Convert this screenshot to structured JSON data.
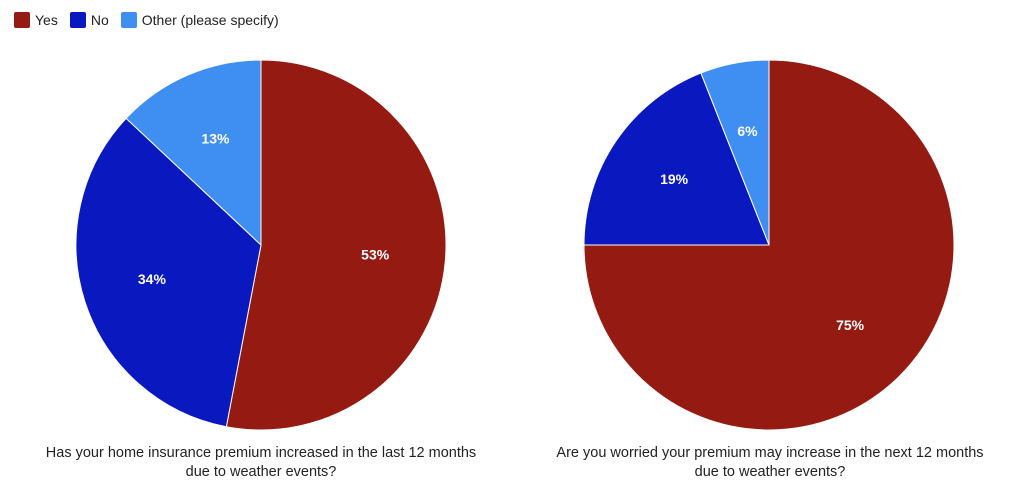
{
  "legend": [
    {
      "label": "Yes",
      "color": "#951b12"
    },
    {
      "label": "No",
      "color": "#0a18c0"
    },
    {
      "label": "Other (please specify)",
      "color": "#3f8ef2"
    }
  ],
  "chart_data": [
    {
      "type": "pie",
      "title_lines": [
        "Has your home insurance premium increased in the last 12 months",
        "due to weather events?"
      ],
      "slices": [
        {
          "label": "Yes",
          "value": 53,
          "display": "53%",
          "color": "#951b12"
        },
        {
          "label": "No",
          "value": 34,
          "display": "34%",
          "color": "#0a18c0"
        },
        {
          "label": "Other (please specify)",
          "value": 13,
          "display": "13%",
          "color": "#3f8ef2"
        }
      ]
    },
    {
      "type": "pie",
      "title_lines": [
        "Are you worried your premium may increase in the next 12 months",
        "due to weather events?"
      ],
      "slices": [
        {
          "label": "Yes",
          "value": 75,
          "display": "75%",
          "color": "#951b12"
        },
        {
          "label": "No",
          "value": 19,
          "display": "19%",
          "color": "#0a18c0"
        },
        {
          "label": "Other (please specify)",
          "value": 6,
          "display": "6%",
          "color": "#3f8ef2"
        }
      ]
    }
  ]
}
